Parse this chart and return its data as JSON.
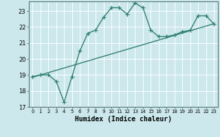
{
  "xlabel": "Humidex (Indice chaleur)",
  "ylabel": "",
  "bg_color": "#cce8ec",
  "grid_color": "#ffffff",
  "line_color": "#2e7d6e",
  "xlim": [
    -0.5,
    23.5
  ],
  "ylim": [
    17,
    23.6
  ],
  "yticks": [
    17,
    18,
    19,
    20,
    21,
    22,
    23
  ],
  "xticks": [
    0,
    1,
    2,
    3,
    4,
    5,
    6,
    7,
    8,
    9,
    10,
    11,
    12,
    13,
    14,
    15,
    16,
    17,
    18,
    19,
    20,
    21,
    22,
    23
  ],
  "curve_x": [
    0,
    1,
    2,
    3,
    4,
    5,
    6,
    7,
    8,
    9,
    10,
    11,
    12,
    13,
    14,
    15,
    16,
    17,
    18,
    19,
    20,
    21,
    22,
    23
  ],
  "curve_y": [
    18.9,
    19.0,
    19.0,
    18.6,
    17.3,
    18.9,
    20.5,
    21.6,
    21.8,
    22.6,
    23.2,
    23.2,
    22.8,
    23.5,
    23.2,
    21.8,
    21.4,
    21.4,
    21.5,
    21.7,
    21.8,
    22.7,
    22.7,
    22.2
  ],
  "line_x": [
    0,
    23
  ],
  "line_y": [
    18.85,
    22.2
  ],
  "marker_size": 4,
  "linewidth": 1.0,
  "xlabel_fontsize": 7,
  "xtick_fontsize": 5,
  "ytick_fontsize": 6
}
